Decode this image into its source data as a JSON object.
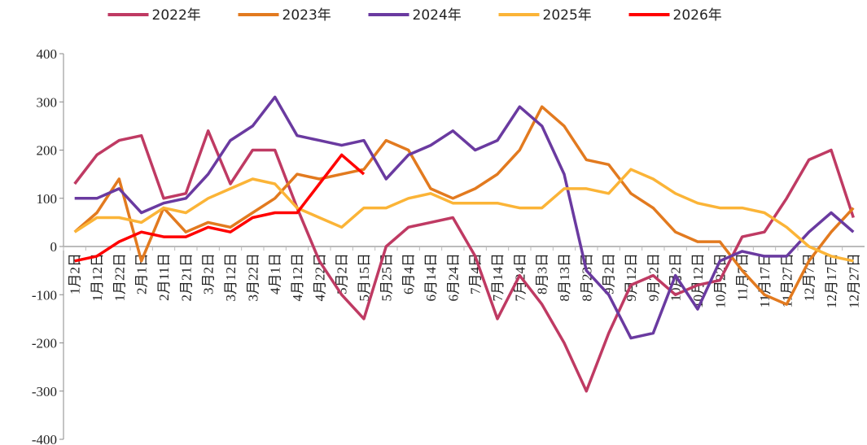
{
  "chart_data": {
    "type": "line",
    "categories": [
      "1月2日",
      "1月12日",
      "1月22日",
      "2月1日",
      "2月11日",
      "2月21日",
      "3月2日",
      "3月12日",
      "3月22日",
      "4月1日",
      "4月12日",
      "4月22日",
      "5月2日",
      "5月15日",
      "5月25日",
      "6月4日",
      "6月14日",
      "6月24日",
      "7月4日",
      "7月14日",
      "7月24日",
      "8月3日",
      "8月13日",
      "8月23日",
      "9月2日",
      "9月12日",
      "9月22日",
      "10月2日",
      "10月12日",
      "10月22日",
      "11月7日",
      "11月17日",
      "11月27日",
      "12月7日",
      "12月17日",
      "12月27日"
    ],
    "series": [
      {
        "name": "2022年",
        "color": "#bf3a63",
        "values": [
          130,
          190,
          220,
          230,
          100,
          110,
          240,
          130,
          200,
          200,
          80,
          -30,
          -100,
          -150,
          0,
          40,
          50,
          60,
          -20,
          -150,
          -60,
          -120,
          -200,
          -300,
          -180,
          -80,
          -60,
          -100,
          -80,
          -70,
          20,
          30,
          100,
          180,
          200,
          60
        ]
      },
      {
        "name": "2023年",
        "color": "#e27a1f",
        "values": [
          30,
          70,
          140,
          -30,
          80,
          30,
          50,
          40,
          70,
          100,
          150,
          140,
          150,
          160,
          220,
          200,
          120,
          100,
          120,
          150,
          200,
          290,
          250,
          180,
          170,
          110,
          80,
          30,
          10,
          10,
          -50,
          -100,
          -120,
          -30,
          30,
          80
        ]
      },
      {
        "name": "2024年",
        "color": "#6a3aa0",
        "values": [
          100,
          100,
          120,
          70,
          90,
          100,
          150,
          220,
          250,
          310,
          230,
          220,
          210,
          220,
          140,
          190,
          210,
          240,
          200,
          220,
          290,
          250,
          150,
          -50,
          -100,
          -190,
          -180,
          -60,
          -130,
          -30,
          -10,
          -20,
          -20,
          30,
          70,
          30
        ]
      },
      {
        "name": "2025年",
        "color": "#fbb437",
        "values": [
          30,
          60,
          60,
          50,
          80,
          70,
          100,
          120,
          140,
          130,
          80,
          60,
          40,
          80,
          80,
          100,
          110,
          90,
          90,
          90,
          80,
          80,
          120,
          120,
          110,
          160,
          140,
          110,
          90,
          80,
          80,
          70,
          40,
          0,
          -20,
          -30
        ]
      },
      {
        "name": "2026年",
        "color": "#ff0000",
        "values": [
          -30,
          -20,
          10,
          30,
          20,
          20,
          40,
          30,
          60,
          70,
          70,
          130,
          190,
          150,
          null,
          null,
          null,
          null,
          null,
          null,
          null,
          null,
          null,
          null,
          null,
          null,
          null,
          null,
          null,
          null,
          null,
          null,
          null,
          null,
          null,
          null
        ]
      }
    ],
    "ylim": [
      -400,
      400
    ],
    "yticks": [
      -400,
      -300,
      -200,
      -100,
      0,
      100,
      200,
      300,
      400
    ]
  }
}
